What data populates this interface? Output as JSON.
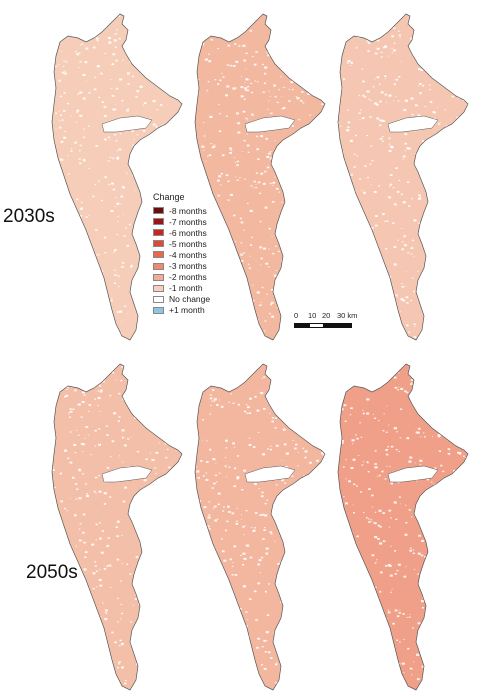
{
  "rows": [
    {
      "label": "2030s",
      "panel_tones": [
        "#f6cdb9",
        "#f3b8a0",
        "#f5c7b2"
      ]
    },
    {
      "label": "2050s",
      "panel_tones": [
        "#f4bfa8",
        "#f3b7a0",
        "#f0a088"
      ]
    }
  ],
  "legend": {
    "title": "Change",
    "items": [
      {
        "label": "-8 months",
        "color": "#6b0d0d"
      },
      {
        "label": "-7 months",
        "color": "#9c1414"
      },
      {
        "label": "-6 months",
        "color": "#c8261c"
      },
      {
        "label": "-5 months",
        "color": "#df4a33"
      },
      {
        "label": "-4 months",
        "color": "#e9684e"
      },
      {
        "label": "-3 months",
        "color": "#ef8a70"
      },
      {
        "label": "-2 months",
        "color": "#f3ac95"
      },
      {
        "label": "-1 month",
        "color": "#f8cfbd"
      },
      {
        "label": "No change",
        "color": "#ffffff"
      },
      {
        "label": "+1 month",
        "color": "#8ec4e6"
      }
    ]
  },
  "scale": {
    "ticks": [
      "0",
      "10",
      "20",
      "30 km"
    ]
  },
  "colors": {
    "outline": "#555555",
    "no_change": "#ffffff"
  }
}
